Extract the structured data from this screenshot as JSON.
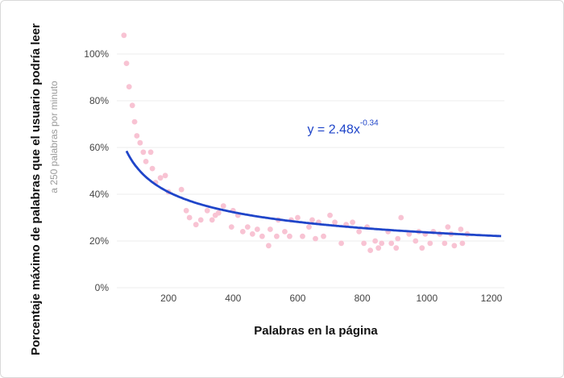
{
  "chart_data": {
    "type": "scatter",
    "xlabel": "Palabras en la página",
    "ylabel": "Porcentaje máximo de palabras que el usuario podría leer",
    "ylabel_sub": "a 250 palabras por minuto",
    "xlim": [
      40,
      1240
    ],
    "ylim": [
      0,
      1.0
    ],
    "x_ticks": [
      200,
      400,
      600,
      800,
      1000,
      1200
    ],
    "y_ticks": [
      0,
      0.2,
      0.4,
      0.6,
      0.8,
      1.0
    ],
    "y_tick_labels": [
      "0%",
      "20%",
      "40%",
      "60%",
      "80%",
      "100%"
    ],
    "grid": "horizontal",
    "colors": {
      "points": "#f8c3d3",
      "fit": "#1f45c9",
      "grid": "#ececec"
    },
    "fit": {
      "a": 2.48,
      "b": -0.34,
      "x_range": [
        70,
        1230
      ]
    },
    "annotation": {
      "text": "y = 2.48x",
      "exponent": "-0.34",
      "x": 630,
      "y": 0.66
    },
    "series": [
      {
        "points": [
          [
            62,
            1.08
          ],
          [
            70,
            0.96
          ],
          [
            78,
            0.86
          ],
          [
            88,
            0.78
          ],
          [
            95,
            0.71
          ],
          [
            102,
            0.65
          ],
          [
            112,
            0.62
          ],
          [
            122,
            0.58
          ],
          [
            130,
            0.54
          ],
          [
            145,
            0.58
          ],
          [
            150,
            0.51
          ],
          [
            160,
            0.45
          ],
          [
            175,
            0.47
          ],
          [
            190,
            0.48
          ],
          [
            200,
            0.41
          ],
          [
            240,
            0.42
          ],
          [
            255,
            0.33
          ],
          [
            265,
            0.3
          ],
          [
            285,
            0.27
          ],
          [
            300,
            0.29
          ],
          [
            320,
            0.33
          ],
          [
            335,
            0.29
          ],
          [
            345,
            0.31
          ],
          [
            355,
            0.32
          ],
          [
            370,
            0.35
          ],
          [
            395,
            0.26
          ],
          [
            400,
            0.33
          ],
          [
            415,
            0.31
          ],
          [
            430,
            0.24
          ],
          [
            445,
            0.26
          ],
          [
            460,
            0.23
          ],
          [
            475,
            0.25
          ],
          [
            490,
            0.22
          ],
          [
            510,
            0.18
          ],
          [
            515,
            0.25
          ],
          [
            535,
            0.22
          ],
          [
            540,
            0.29
          ],
          [
            560,
            0.24
          ],
          [
            575,
            0.22
          ],
          [
            580,
            0.29
          ],
          [
            600,
            0.3
          ],
          [
            615,
            0.22
          ],
          [
            635,
            0.26
          ],
          [
            645,
            0.29
          ],
          [
            655,
            0.21
          ],
          [
            665,
            0.28
          ],
          [
            680,
            0.22
          ],
          [
            700,
            0.31
          ],
          [
            715,
            0.28
          ],
          [
            735,
            0.19
          ],
          [
            750,
            0.27
          ],
          [
            770,
            0.28
          ],
          [
            790,
            0.24
          ],
          [
            805,
            0.19
          ],
          [
            815,
            0.26
          ],
          [
            825,
            0.16
          ],
          [
            840,
            0.2
          ],
          [
            850,
            0.17
          ],
          [
            860,
            0.19
          ],
          [
            880,
            0.24
          ],
          [
            890,
            0.19
          ],
          [
            905,
            0.17
          ],
          [
            910,
            0.21
          ],
          [
            920,
            0.3
          ],
          [
            945,
            0.23
          ],
          [
            965,
            0.2
          ],
          [
            975,
            0.24
          ],
          [
            985,
            0.17
          ],
          [
            995,
            0.23
          ],
          [
            1010,
            0.19
          ],
          [
            1020,
            0.24
          ],
          [
            1040,
            0.23
          ],
          [
            1055,
            0.19
          ],
          [
            1065,
            0.26
          ],
          [
            1075,
            0.23
          ],
          [
            1085,
            0.18
          ],
          [
            1105,
            0.25
          ],
          [
            1110,
            0.19
          ],
          [
            1125,
            0.23
          ]
        ]
      }
    ]
  }
}
